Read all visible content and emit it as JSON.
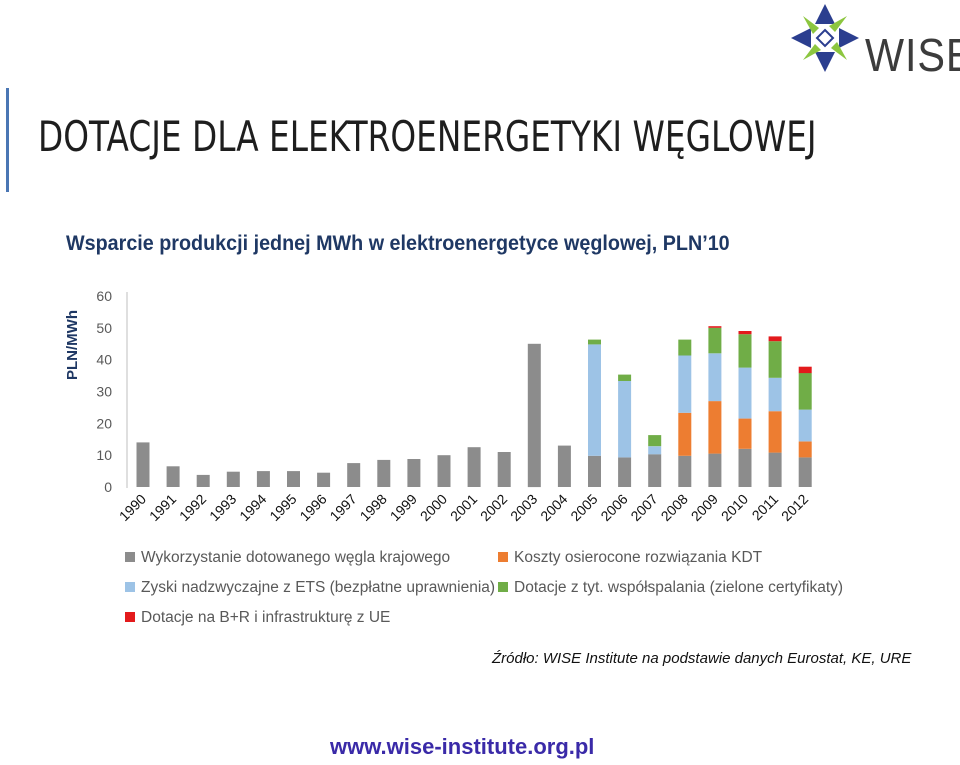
{
  "header": {
    "title": "DOTACJE DLA ELEKTROENERGETYKI WĘGLOWEJ",
    "logo_text": "WISE"
  },
  "footer": {
    "source": "Źródło: WISE Institute na podstawie danych Eurostat, KE, URE",
    "website": "www.wise-institute.org.pl"
  },
  "colors": {
    "title_blue": "#1f3864",
    "accent_bar": "#4a76b4",
    "website_blue": "#3a2aa8"
  },
  "chart_data": {
    "type": "bar",
    "stacked": true,
    "title": "Wsparcie produkcji jednej MWh w elektroenergetyce węglowej, PLN’10",
    "ylabel": "PLN/MWh",
    "xlabel": "",
    "ylim": [
      0,
      60
    ],
    "yticks": [
      0,
      10,
      20,
      30,
      40,
      50,
      60
    ],
    "grid": false,
    "legend_position": "bottom",
    "categories": [
      "1990",
      "1991",
      "1992",
      "1993",
      "1994",
      "1995",
      "1996",
      "1997",
      "1998",
      "1999",
      "2000",
      "2001",
      "2002",
      "2003",
      "2004",
      "2005",
      "2006",
      "2007",
      "2008",
      "2009",
      "2010",
      "2011",
      "2012"
    ],
    "series": [
      {
        "name": "Wykorzystanie dotowanego węgla krajowego",
        "color": "#8c8c8c",
        "values": [
          14,
          6.5,
          3.8,
          4.8,
          5,
          5,
          4.5,
          7.5,
          8.5,
          8.8,
          10,
          12.5,
          11,
          45,
          13,
          9.8,
          9.3,
          10.3,
          9.8,
          10.5,
          12,
          10.8,
          9.3
        ]
      },
      {
        "name": "Koszty osierocone rozwiązania KDT",
        "color": "#ed7d31",
        "values": [
          0,
          0,
          0,
          0,
          0,
          0,
          0,
          0,
          0,
          0,
          0,
          0,
          0,
          0,
          0,
          0,
          0,
          0,
          13.5,
          16.5,
          9.5,
          13,
          5
        ]
      },
      {
        "name": "Zyski nadzwyczajne z ETS (bezpłatne uprawnienia)",
        "color": "#9dc3e6",
        "values": [
          0,
          0,
          0,
          0,
          0,
          0,
          0,
          0,
          0,
          0,
          0,
          0,
          0,
          0,
          0,
          35,
          24,
          2.5,
          18,
          15,
          16,
          10.5,
          10
        ]
      },
      {
        "name": "Dotacje z tyt. współspalania (zielone certyfikaty)",
        "color": "#70ad47",
        "values": [
          0,
          0,
          0,
          0,
          0,
          0,
          0,
          0,
          0,
          0,
          0,
          0,
          0,
          0,
          0,
          1.5,
          2,
          3.5,
          5,
          8,
          10.5,
          11.5,
          11.5
        ]
      },
      {
        "name": "Dotacje na B+R i infrastrukturę z UE",
        "color": "#e31a1c",
        "values": [
          0,
          0,
          0,
          0,
          0,
          0,
          0,
          0,
          0,
          0,
          0,
          0,
          0,
          0,
          0,
          0,
          0,
          0,
          0,
          0.5,
          1,
          1.5,
          2
        ]
      }
    ]
  }
}
